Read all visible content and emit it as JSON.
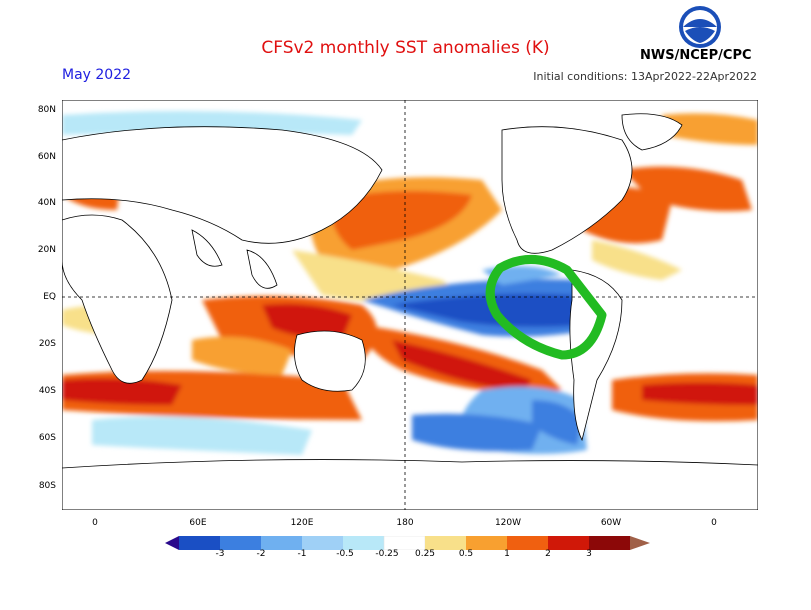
{
  "header": {
    "title": "CFSv2 monthly SST anomalies (K)",
    "month": "May 2022",
    "initial_conditions": "Initial conditions: 13Apr2022-22Apr2022",
    "agency": "NWS/NCEP/CPC",
    "logo_text": "NOAA"
  },
  "axes": {
    "lat_labels": [
      "80N",
      "60N",
      "40N",
      "20N",
      "EQ",
      "20S",
      "40S",
      "60S",
      "80S"
    ],
    "lon_labels": [
      "0",
      "60E",
      "120E",
      "180",
      "120W",
      "60W",
      "0"
    ]
  },
  "colorbar": {
    "labels": [
      "-3",
      "-2",
      "-1",
      "-0.5",
      "-0.25",
      "0.25",
      "0.5",
      "1",
      "2",
      "3"
    ],
    "colors": [
      "#2a0a8c",
      "#1a4fc4",
      "#3c7fe0",
      "#6fb0f0",
      "#b8e8f8",
      "#ffffff",
      "#f8e08a",
      "#f8a030",
      "#f06010",
      "#d01808",
      "#8c0808",
      "#a06048"
    ]
  },
  "colors": {
    "title": "#e01010",
    "month": "#2020e0",
    "annotation": "#22bb22"
  }
}
